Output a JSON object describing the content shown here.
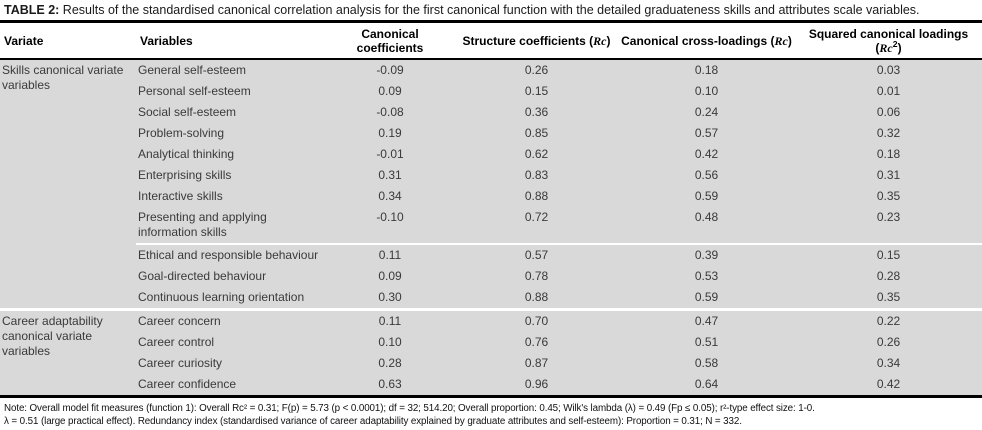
{
  "title": {
    "label": "TABLE 2:",
    "text": " Results of the standardised canonical correlation analysis for the first canonical function with the detailed graduateness skills and attributes scale variables."
  },
  "table": {
    "columns": [
      {
        "prefix": "Variate",
        "align": "left"
      },
      {
        "prefix": "Variables",
        "align": "left"
      },
      {
        "prefix": "Canonical coefficients",
        "align": "center"
      },
      {
        "prefix": "Structure coefficients (",
        "italic": "Rc",
        "suffix": ")",
        "align": "center"
      },
      {
        "prefix": "Canonical cross-loadings (",
        "italic": "Rc",
        "suffix": ")",
        "align": "center"
      },
      {
        "prefix": "Squared canonical loadings (",
        "italic": "Rc",
        "sup": "2",
        "suffix": ")",
        "align": "center"
      }
    ],
    "sections": [
      {
        "variate": "Skills canonical variate variables",
        "rows": [
          {
            "variable": "General self-esteem",
            "values": [
              "-0.09",
              "0.26",
              "0.18",
              "0.03"
            ]
          },
          {
            "variable": "Personal self-esteem",
            "values": [
              "0.09",
              "0.15",
              "0.10",
              "0.01"
            ]
          },
          {
            "variable": "Social self-esteem",
            "values": [
              "-0.08",
              "0.36",
              "0.24",
              "0.06"
            ]
          },
          {
            "variable": "Problem-solving",
            "values": [
              "0.19",
              "0.85",
              "0.57",
              "0.32"
            ]
          },
          {
            "variable": "Analytical thinking",
            "values": [
              "-0.01",
              "0.62",
              "0.42",
              "0.18"
            ]
          },
          {
            "variable": "Enterprising skills",
            "values": [
              "0.31",
              "0.83",
              "0.56",
              "0.31"
            ]
          },
          {
            "variable": "Interactive skills",
            "values": [
              "0.34",
              "0.88",
              "0.59",
              "0.35"
            ]
          },
          {
            "variable": "Presenting and applying information skills",
            "values": [
              "-0.10",
              "0.72",
              "0.48",
              "0.23"
            ]
          },
          {
            "variable": "Ethical and responsible behaviour",
            "values": [
              "0.11",
              "0.57",
              "0.39",
              "0.15"
            ]
          },
          {
            "variable": "Goal-directed behaviour",
            "values": [
              "0.09",
              "0.78",
              "0.53",
              "0.28"
            ]
          },
          {
            "variable": "Continuous learning orientation",
            "values": [
              "0.30",
              "0.88",
              "0.59",
              "0.35"
            ]
          }
        ]
      },
      {
        "variate": "Career adaptability canonical variate variables",
        "rows": [
          {
            "variable": "Career concern",
            "values": [
              "0.11",
              "0.70",
              "0.47",
              "0.22"
            ]
          },
          {
            "variable": "Career control",
            "values": [
              "0.10",
              "0.76",
              "0.51",
              "0.26"
            ]
          },
          {
            "variable": "Career curiosity",
            "values": [
              "0.28",
              "0.87",
              "0.58",
              "0.34"
            ]
          },
          {
            "variable": "Career confidence",
            "values": [
              "0.63",
              "0.96",
              "0.64",
              "0.42"
            ]
          }
        ]
      }
    ]
  },
  "note": {
    "line1": "Note: Overall model fit measures (function 1): Overall Rc² = 0.31; F(p) = 5.73 (p < 0.0001); df = 32; 514.20; Overall proportion: 0.45; Wilk's lambda (λ) = 0.49 (Fp ≤ 0.05); r²-type effect size: 1-0.",
    "line2": "λ = 0.51 (large practical effect). Redundancy index (standardised variance of career adaptability explained by graduate attributes and self-esteem): Proportion = 0.31; N = 332."
  },
  "colors": {
    "row_background": "#d9d9d9",
    "rule": "#000000",
    "body_text": "#3a3a3a"
  }
}
